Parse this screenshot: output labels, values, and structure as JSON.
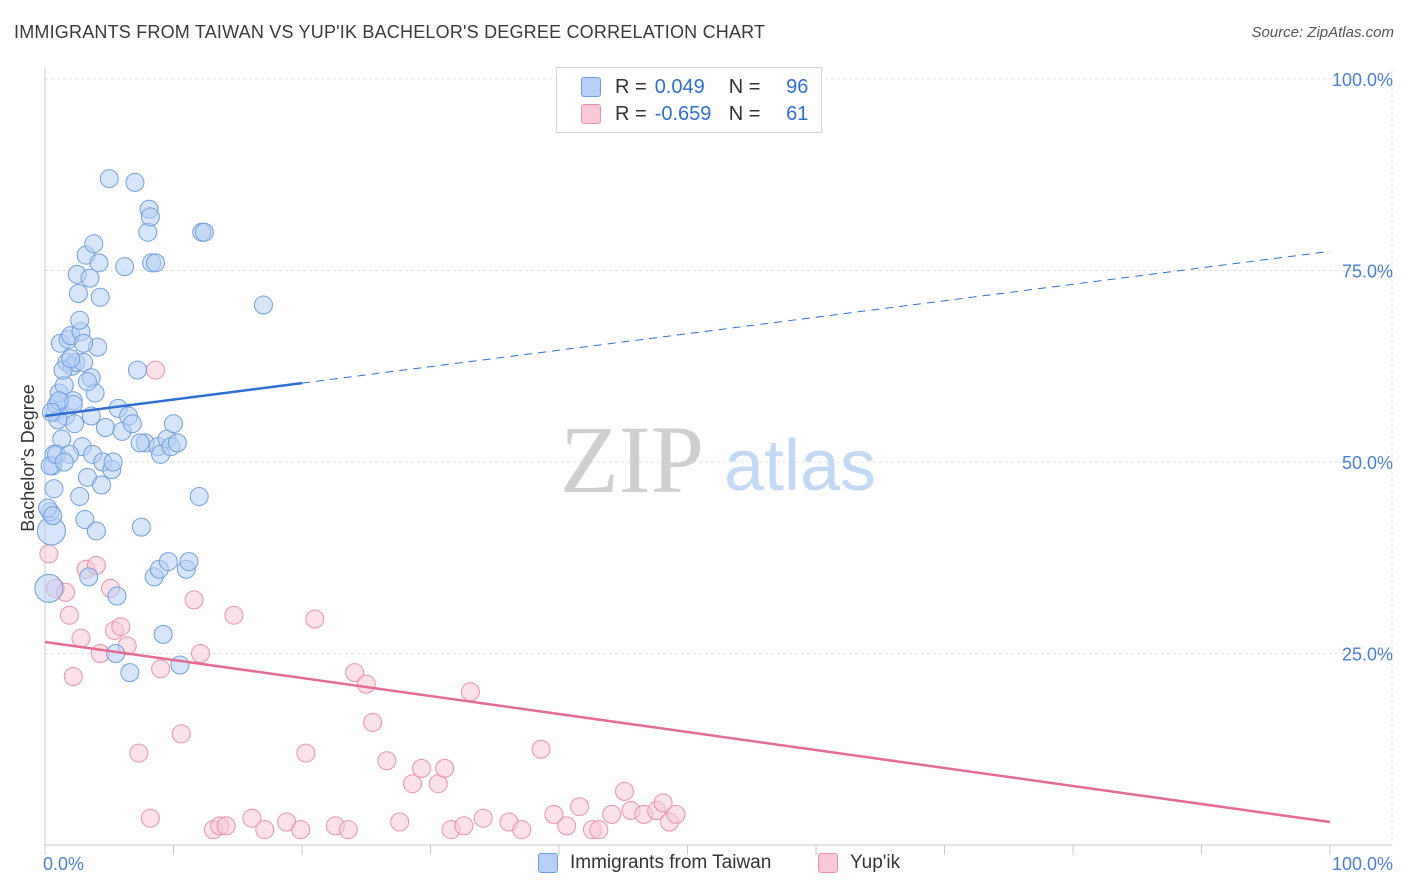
{
  "title": "IMMIGRANTS FROM TAIWAN VS YUP'IK BACHELOR'S DEGREE CORRELATION CHART",
  "source": "Source: ZipAtlas.com",
  "watermark": {
    "zip": "ZIP",
    "atlas": "atlas"
  },
  "legend": {
    "r_label": "R =",
    "n_label": "N =",
    "series1": {
      "r": "0.049",
      "n": "96"
    },
    "series2": {
      "r": "-0.659",
      "n": "61"
    }
  },
  "colors": {
    "blue_fill": "#b7d0f5",
    "blue_stroke": "#6e9ee0",
    "blue_line": "#2e6fd1",
    "pink_fill": "#f9c9d7",
    "pink_stroke": "#ea8fab",
    "pink_line": "#e56b93",
    "grid": "#e2e2e2",
    "axis_text": "#4a7fd4"
  },
  "chart_data": {
    "type": "scatter",
    "title": "IMMIGRANTS FROM TAIWAN VS YUP'IK BACHELOR'S DEGREE CORRELATION CHART",
    "xlabel": "",
    "ylabel": "Bachelor's Degree",
    "xlim": [
      0,
      100
    ],
    "ylim": [
      0,
      100
    ],
    "x_tick_labels": [
      "0.0%",
      "100.0%"
    ],
    "y_ticks": [
      25,
      50,
      75,
      100
    ],
    "y_tick_labels": [
      "25.0%",
      "50.0%",
      "75.0%",
      "100.0%"
    ],
    "grid": true,
    "series": [
      {
        "name": "Immigrants from Taiwan",
        "r": 0.049,
        "n": 96,
        "trend": {
          "x": [
            0,
            100
          ],
          "y": [
            56.0,
            77.5
          ],
          "solid_until_x": 20
        },
        "points": [
          [
            0.3,
            33.5
          ],
          [
            0.5,
            41
          ],
          [
            0.4,
            43.5
          ],
          [
            0.6,
            49.5
          ],
          [
            0.7,
            51
          ],
          [
            0.8,
            56.5
          ],
          [
            0.9,
            57.5
          ],
          [
            1.1,
            59
          ],
          [
            1.2,
            65.5
          ],
          [
            1.3,
            53
          ],
          [
            1.5,
            60
          ],
          [
            1.6,
            56
          ],
          [
            1.7,
            63
          ],
          [
            1.8,
            66
          ],
          [
            2.0,
            66.5
          ],
          [
            2.1,
            62.5
          ],
          [
            2.2,
            58
          ],
          [
            2.3,
            55
          ],
          [
            2.4,
            63
          ],
          [
            2.5,
            74.5
          ],
          [
            2.6,
            72
          ],
          [
            2.7,
            45.5
          ],
          [
            2.8,
            67
          ],
          [
            2.9,
            52
          ],
          [
            3.0,
            63
          ],
          [
            3.1,
            42.5
          ],
          [
            3.2,
            77
          ],
          [
            3.3,
            48
          ],
          [
            3.4,
            35
          ],
          [
            3.5,
            74
          ],
          [
            3.6,
            61
          ],
          [
            3.7,
            51
          ],
          [
            3.8,
            78.5
          ],
          [
            3.9,
            59
          ],
          [
            4.0,
            41
          ],
          [
            4.1,
            65
          ],
          [
            4.2,
            76
          ],
          [
            4.3,
            71.5
          ],
          [
            4.5,
            50
          ],
          [
            4.7,
            54.5
          ],
          [
            5.0,
            87
          ],
          [
            5.2,
            49
          ],
          [
            5.5,
            25
          ],
          [
            5.7,
            57
          ],
          [
            6.0,
            54
          ],
          [
            6.2,
            75.5
          ],
          [
            6.5,
            56
          ],
          [
            6.8,
            55
          ],
          [
            7.0,
            86.5
          ],
          [
            7.2,
            62
          ],
          [
            7.5,
            41.5
          ],
          [
            7.8,
            52.5
          ],
          [
            8.0,
            80
          ],
          [
            8.1,
            83
          ],
          [
            8.2,
            82
          ],
          [
            8.3,
            76
          ],
          [
            8.5,
            35
          ],
          [
            8.6,
            76
          ],
          [
            8.8,
            52
          ],
          [
            9.0,
            51
          ],
          [
            9.2,
            27.5
          ],
          [
            9.5,
            53
          ],
          [
            9.8,
            52
          ],
          [
            10,
            55
          ],
          [
            10.3,
            52.5
          ],
          [
            10.5,
            23.5
          ],
          [
            11,
            36
          ],
          [
            11.2,
            37
          ],
          [
            12,
            45.5
          ],
          [
            12.2,
            80
          ],
          [
            12.4,
            80
          ],
          [
            17,
            70.5
          ],
          [
            0.2,
            44
          ],
          [
            0.4,
            49.5
          ],
          [
            0.6,
            43
          ],
          [
            0.9,
            51
          ],
          [
            1.0,
            55.5
          ],
          [
            1.4,
            62
          ],
          [
            1.9,
            51
          ],
          [
            2.2,
            57.5
          ],
          [
            2.7,
            68.5
          ],
          [
            3.0,
            65.5
          ],
          [
            3.3,
            60.5
          ],
          [
            3.6,
            56
          ],
          [
            1.1,
            58
          ],
          [
            0.7,
            46.5
          ],
          [
            5.3,
            50
          ],
          [
            5.6,
            32.5
          ],
          [
            6.6,
            22.5
          ],
          [
            0.5,
            56.5
          ],
          [
            1.5,
            50
          ],
          [
            2.0,
            63.5
          ],
          [
            4.4,
            47
          ],
          [
            7.4,
            52.5
          ],
          [
            8.9,
            36
          ],
          [
            9.6,
            37
          ]
        ]
      },
      {
        "name": "Yup'ik",
        "r": -0.659,
        "n": 61,
        "trend": {
          "x": [
            0,
            100
          ],
          "y": [
            26.5,
            3.0
          ]
        },
        "points": [
          [
            0.3,
            38
          ],
          [
            0.8,
            33.5
          ],
          [
            1.6,
            33
          ],
          [
            1.9,
            30
          ],
          [
            2.2,
            22
          ],
          [
            2.8,
            27
          ],
          [
            3.2,
            36
          ],
          [
            4.0,
            36.5
          ],
          [
            4.3,
            25
          ],
          [
            5.1,
            33.5
          ],
          [
            5.4,
            28
          ],
          [
            5.9,
            28.5
          ],
          [
            6.4,
            26
          ],
          [
            7.3,
            12
          ],
          [
            8.2,
            3.5
          ],
          [
            8.6,
            62
          ],
          [
            9.0,
            23
          ],
          [
            10.6,
            14.5
          ],
          [
            11.6,
            32
          ],
          [
            12.1,
            25
          ],
          [
            13.1,
            2
          ],
          [
            13.6,
            2.5
          ],
          [
            14.1,
            2.5
          ],
          [
            14.7,
            30
          ],
          [
            16.1,
            3.5
          ],
          [
            17.1,
            2
          ],
          [
            18.8,
            3
          ],
          [
            19.9,
            2
          ],
          [
            20.3,
            12
          ],
          [
            21,
            29.5
          ],
          [
            22.6,
            2.5
          ],
          [
            23.6,
            2
          ],
          [
            24.1,
            22.5
          ],
          [
            25,
            21
          ],
          [
            25.5,
            16
          ],
          [
            26.6,
            11
          ],
          [
            27.6,
            3
          ],
          [
            28.6,
            8
          ],
          [
            29.3,
            10
          ],
          [
            30.6,
            8
          ],
          [
            31.1,
            10
          ],
          [
            31.6,
            2
          ],
          [
            32.6,
            2.5
          ],
          [
            33.1,
            20
          ],
          [
            34.1,
            3.5
          ],
          [
            36.1,
            3
          ],
          [
            37.1,
            2
          ],
          [
            38.6,
            12.5
          ],
          [
            39.6,
            4
          ],
          [
            40.6,
            2.5
          ],
          [
            41.6,
            5
          ],
          [
            42.6,
            2
          ],
          [
            43.1,
            2
          ],
          [
            44.1,
            4
          ],
          [
            45.1,
            7
          ],
          [
            45.6,
            4.5
          ],
          [
            46.6,
            4
          ],
          [
            47.6,
            4.5
          ],
          [
            48.1,
            5.5
          ],
          [
            48.6,
            3
          ],
          [
            49.1,
            4
          ]
        ]
      }
    ]
  },
  "bottom_legend": {
    "item1": "Immigrants from Taiwan",
    "item2": "Yup'ik"
  }
}
